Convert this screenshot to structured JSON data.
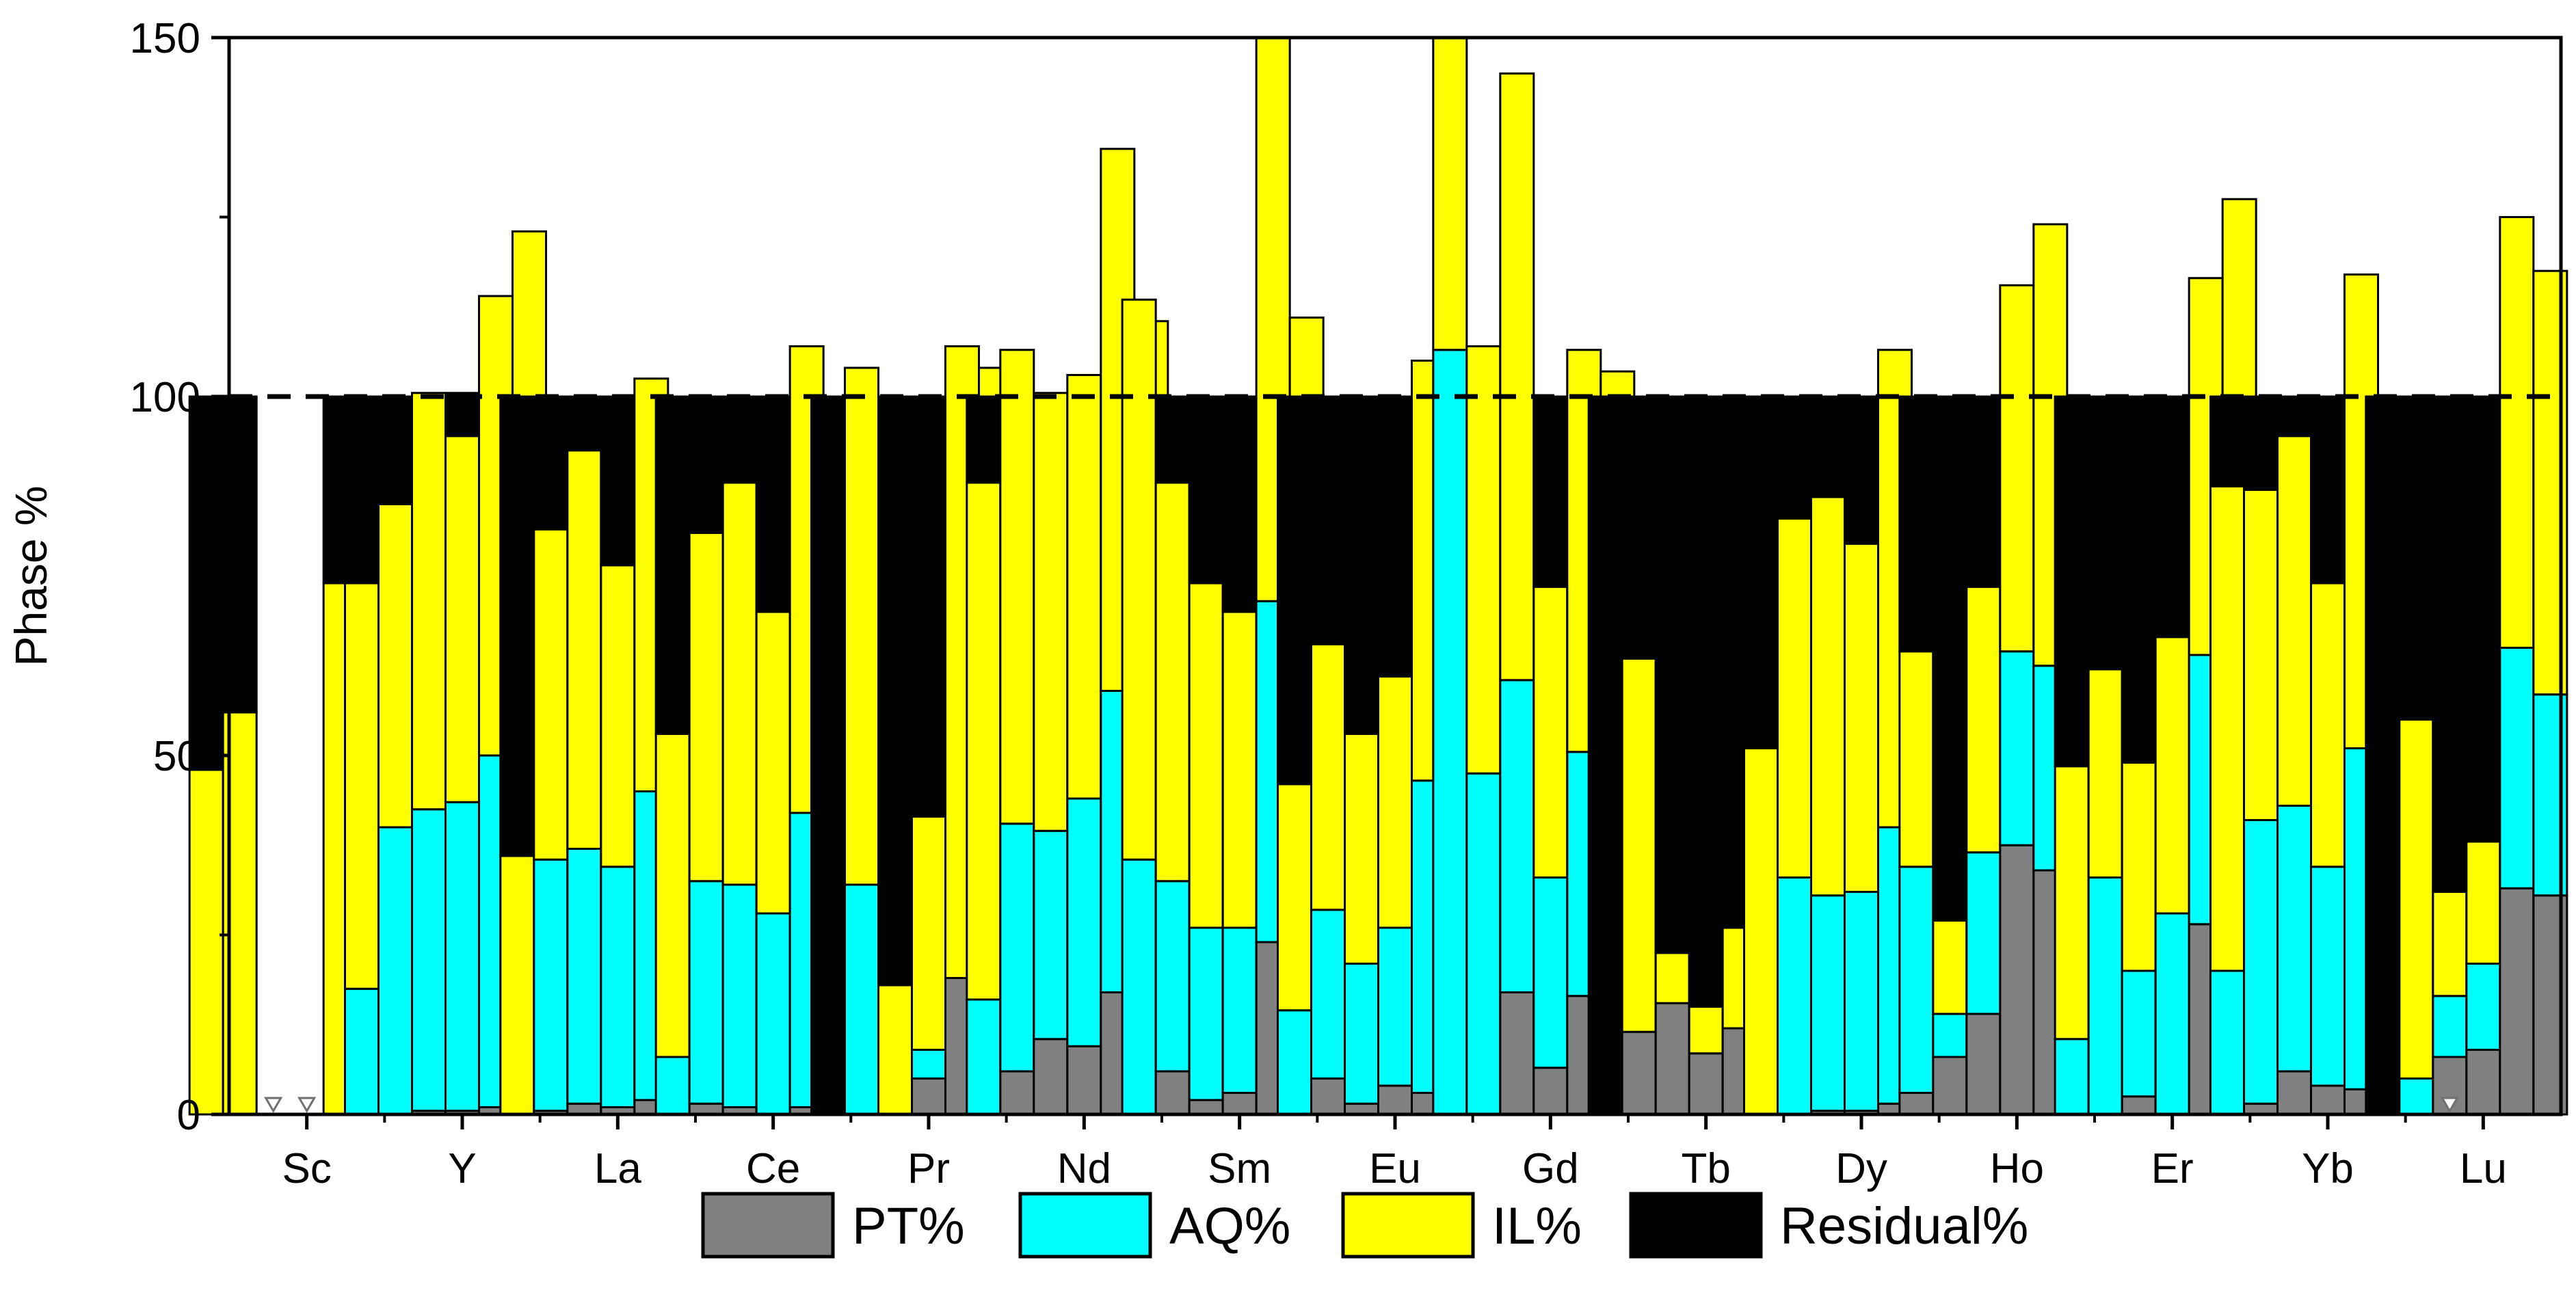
{
  "chart_data": {
    "type": "bar",
    "stacked": true,
    "title": "",
    "xlabel": "",
    "ylabel": "Phase %",
    "ylim": [
      0,
      150
    ],
    "yticks": [
      0,
      50,
      100,
      150
    ],
    "reference_line": {
      "y": 100,
      "style": "dashed"
    },
    "categories": [
      "Sc",
      "Y",
      "La",
      "Ce",
      "Pr",
      "Nd",
      "Sm",
      "Eu",
      "Gd",
      "Tb",
      "Dy",
      "Ho",
      "Er",
      "Yb",
      "Lu"
    ],
    "bars_per_category": 7,
    "series": [
      {
        "name": "PT%",
        "label": "PT%",
        "color": "#808080"
      },
      {
        "name": "AQ%",
        "label": "AQ%",
        "color": "#00ffff"
      },
      {
        "name": "IL%",
        "label": "IL%",
        "color": "#ffff00"
      },
      {
        "name": "Residual%",
        "label": "Residual%",
        "color": "#000000"
      }
    ],
    "legend_position": "bottom",
    "below_detection_marker": "open-triangle",
    "data": {
      "Sc": [
        [
          0,
          0,
          48,
          52
        ],
        [
          0,
          0,
          56,
          44
        ],
        null,
        null,
        [
          0,
          0,
          74,
          26
        ],
        [
          0,
          0,
          78,
          22
        ],
        null
      ],
      "Y": [
        [
          0,
          17.5,
          56.5,
          26
        ],
        [
          0,
          40,
          45,
          15
        ],
        [
          0.5,
          42,
          58,
          0
        ],
        [
          0.5,
          43,
          51,
          6
        ],
        [
          1,
          49,
          64,
          0
        ],
        [
          1,
          49,
          73,
          0
        ],
        null
      ],
      "La": [
        [
          0,
          0,
          36,
          64
        ],
        [
          0.5,
          35,
          46,
          18.5
        ],
        [
          1.5,
          35.5,
          55.5,
          7.5
        ],
        [
          1,
          33.5,
          42,
          23.5
        ],
        [
          2,
          43,
          57.5,
          0
        ],
        [
          1.5,
          28,
          47,
          23.5
        ],
        null
      ],
      "Ce": [
        [
          0,
          8,
          45,
          47
        ],
        [
          1.5,
          31,
          48.5,
          19
        ],
        [
          1,
          31,
          56,
          12
        ],
        [
          0,
          28,
          42,
          30
        ],
        [
          1,
          41,
          65,
          0
        ],
        [
          1.5,
          24.5,
          48,
          26
        ],
        null
      ],
      "Pr": [
        [
          0,
          0,
          0,
          100
        ],
        [
          0,
          32,
          72,
          0
        ],
        [
          0,
          0,
          18,
          82
        ],
        [
          5,
          4,
          32.5,
          58.5
        ],
        [
          19,
          0,
          88,
          0
        ],
        [
          9,
          0,
          95,
          0
        ],
        null
      ],
      "Nd": [
        [
          0,
          16,
          72,
          12
        ],
        [
          6,
          34.5,
          66,
          0
        ],
        [
          10.5,
          29,
          61,
          0
        ],
        [
          9.5,
          34.5,
          59,
          0
        ],
        [
          17,
          42,
          75.5,
          0
        ],
        [
          17,
          29.5,
          64,
          0
        ],
        null
      ],
      "Sm": [
        [
          0,
          35.5,
          78,
          0
        ],
        [
          6,
          26.5,
          55.5,
          12
        ],
        [
          2,
          24,
          48,
          26
        ],
        [
          3,
          23,
          44,
          30
        ],
        [
          24,
          47.5,
          78.5,
          0
        ],
        [
          16.5,
          31.5,
          63,
          0
        ],
        null
      ],
      "Eu": [
        [
          0,
          14.5,
          31.5,
          54
        ],
        [
          5,
          23.5,
          37,
          34.5
        ],
        [
          1.5,
          19.5,
          32,
          47
        ],
        [
          4,
          22,
          35,
          39
        ],
        [
          3,
          43.5,
          58.5,
          0
        ],
        [
          4,
          31,
          50,
          15
        ],
        null
      ],
      "Gd": [
        [
          0,
          106.5,
          43.5,
          0
        ],
        [
          0,
          47.5,
          59.5,
          0
        ],
        [
          17,
          43.5,
          84.5,
          0
        ],
        [
          6.5,
          26.5,
          40.5,
          26.5
        ],
        [
          16.5,
          34,
          56,
          0
        ],
        [
          12.5,
          32,
          59,
          0
        ],
        null
      ],
      "Tb": [
        [
          0,
          0,
          0,
          100
        ],
        [
          11.5,
          0,
          52,
          36.5
        ],
        [
          15.5,
          0,
          7,
          77.5
        ],
        [
          8.5,
          0,
          6.5,
          85
        ],
        [
          12,
          0,
          14,
          74
        ],
        [
          0,
          0,
          33,
          67
        ],
        null
      ],
      "Dy": [
        [
          0,
          0,
          51,
          49
        ],
        [
          0,
          33,
          50,
          17
        ],
        [
          0.5,
          30,
          55.5,
          14
        ],
        [
          0.5,
          30.5,
          48.5,
          20.5
        ],
        [
          1.5,
          38.5,
          66.5,
          0
        ],
        [
          0.5,
          25,
          50,
          24.5
        ],
        null
      ],
      "Ho": [
        [
          3,
          31.5,
          30,
          35.5
        ],
        [
          8,
          6,
          13,
          73
        ],
        [
          14,
          22.5,
          37,
          26.5
        ],
        [
          37.5,
          27,
          51,
          0
        ],
        [
          34,
          28.5,
          61.5,
          0
        ],
        null,
        null
      ],
      "Er": [
        [
          0,
          10.5,
          38,
          51.5
        ],
        [
          0,
          33,
          29,
          38
        ],
        [
          2.5,
          17.5,
          29,
          51
        ],
        [
          0,
          28,
          38.5,
          33.5
        ],
        [
          26.5,
          37.5,
          52.5,
          0
        ],
        [
          33.5,
          41,
          53,
          0
        ],
        null
      ],
      "Yb": [
        [
          0,
          20,
          67.5,
          12.5
        ],
        [
          1.5,
          39.5,
          46,
          13
        ],
        [
          6,
          37,
          51.5,
          5.5
        ],
        [
          4,
          30.5,
          39.5,
          26
        ],
        [
          3.5,
          47.5,
          66,
          0
        ],
        [
          5,
          32.5,
          52,
          10.5
        ],
        null
      ],
      "Lu": [
        [
          0,
          0,
          0,
          100
        ],
        [
          0,
          5,
          50,
          45
        ],
        [
          8,
          8.5,
          14.5,
          69
        ],
        [
          9,
          12,
          17,
          62
        ],
        [
          31.5,
          33.5,
          60,
          0
        ],
        [
          30.5,
          28,
          59,
          0
        ],
        null
      ]
    },
    "below_detection": [
      [
        "Sc",
        2
      ],
      [
        "Sc",
        3
      ],
      [
        "Lu",
        2
      ]
    ]
  }
}
